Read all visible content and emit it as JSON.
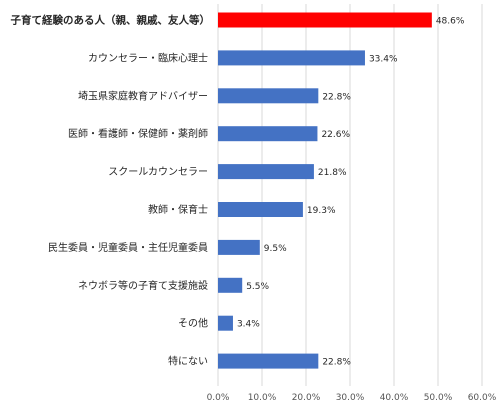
{
  "chart_data": {
    "type": "bar",
    "orientation": "horizontal",
    "title": "",
    "xlabel": "",
    "ylabel": "",
    "categories": [
      "子育て経験のある人（親、親戚、友人等）",
      "カウンセラー・臨床心理士",
      "埼玉県家庭教育アドバイザー",
      "医師・看護師・保健師・薬剤師",
      "スクールカウンセラー",
      "教師・保育士",
      "民生委員・児童委員・主任児童委員",
      "ネウボラ等の子育て支援施設",
      "その他",
      "特にない"
    ],
    "values": [
      48.6,
      33.4,
      22.8,
      22.6,
      21.8,
      19.3,
      9.5,
      5.5,
      3.4,
      22.8
    ],
    "value_labels": [
      "48.6%",
      "33.4%",
      "22.8%",
      "22.6%",
      "21.8%",
      "19.3%",
      "9.5%",
      "5.5%",
      "3.4%",
      "22.8%"
    ],
    "xlim": [
      0,
      60
    ],
    "x_ticks": [
      "0.0%",
      "10.0%",
      "20.0%",
      "30.0%",
      "40.0%",
      "50.0%",
      "60.0%"
    ],
    "grid": true,
    "legend": false,
    "highlight_index": 0,
    "colors": {
      "bar": "#4472C4",
      "highlight": "#FF0000",
      "gridline": "#D9D9D9",
      "text": "#262626"
    }
  }
}
